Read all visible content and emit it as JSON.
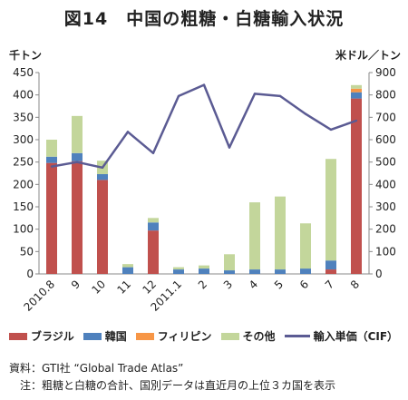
{
  "title": "図14　中国の粗糖・白糖輸入状況",
  "left_unit": "千トン",
  "right_unit": "米ドル／トン",
  "colors": {
    "brazil": "#c0504d",
    "korea": "#4f81bd",
    "philippines": "#f79646",
    "other": "#c3d69b",
    "price": "#5b5b93"
  },
  "chart_data": {
    "type": "bar",
    "categories": [
      "2010.8",
      "9",
      "10",
      "11",
      "12",
      "2011.1",
      "2",
      "3",
      "4",
      "5",
      "6",
      "7",
      "8"
    ],
    "series": [
      {
        "name": "ブラジル",
        "type": "bar",
        "axis": "left",
        "values": [
          248,
          252,
          210,
          0,
          97,
          0,
          0,
          0,
          0,
          0,
          0,
          10,
          392
        ]
      },
      {
        "name": "韓国",
        "type": "bar",
        "axis": "left",
        "values": [
          14,
          18,
          13,
          15,
          18,
          10,
          12,
          8,
          10,
          10,
          12,
          20,
          14
        ]
      },
      {
        "name": "フィリピン",
        "type": "bar",
        "axis": "left",
        "values": [
          0,
          0,
          0,
          0,
          0,
          0,
          0,
          0,
          0,
          0,
          0,
          0,
          8
        ]
      },
      {
        "name": "その他",
        "type": "bar",
        "axis": "left",
        "values": [
          38,
          83,
          30,
          7,
          10,
          5,
          7,
          36,
          150,
          163,
          101,
          227,
          8
        ]
      },
      {
        "name": "輸入単価（CIF）",
        "type": "line",
        "axis": "right",
        "values": [
          480,
          500,
          475,
          635,
          540,
          795,
          845,
          565,
          805,
          795,
          715,
          645,
          685
        ]
      }
    ],
    "ylim_left": [
      0,
      450
    ],
    "yticks_left": [
      0,
      50,
      100,
      150,
      200,
      250,
      300,
      350,
      400,
      450
    ],
    "ylim_right": [
      0,
      900
    ],
    "yticks_right": [
      0,
      100,
      200,
      300,
      400,
      500,
      600,
      700,
      800,
      900
    ],
    "stacked": true,
    "grid": false,
    "legend_position": "bottom"
  },
  "notes": {
    "source": "資料：GTI社 “Global Trade Atlas”",
    "note": "注：粗糖と白糖の合計、国別データは直近月の上位３カ国を表示"
  }
}
